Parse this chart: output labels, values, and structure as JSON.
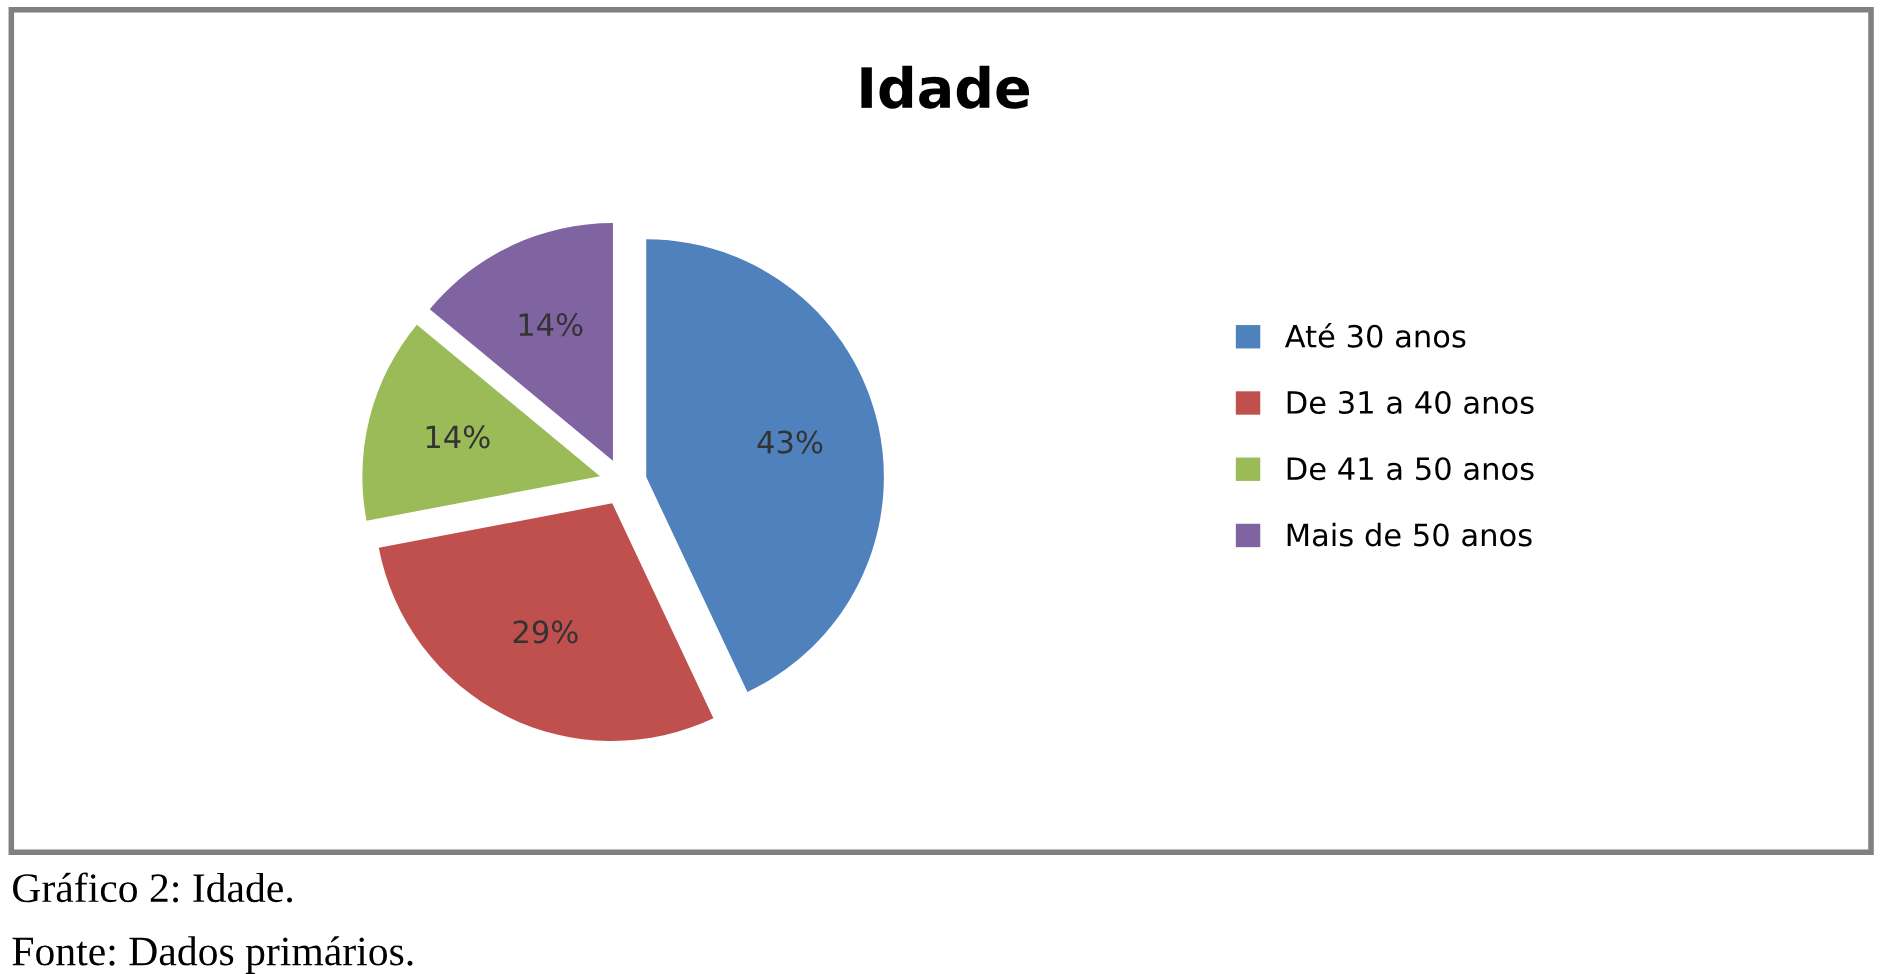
{
  "chart_data": {
    "type": "pie",
    "title": "Idade",
    "categories": [
      "Até 30 anos",
      "De 31 a 40 anos",
      "De 41 a 50 anos",
      "Mais de 50 anos"
    ],
    "values": [
      43,
      29,
      14,
      14
    ],
    "colors": [
      "#4f81bd",
      "#c0504d",
      "#9bbb59",
      "#8064a2"
    ],
    "value_labels": [
      "43%",
      "29%",
      "14%",
      "14%"
    ],
    "legend": "right",
    "annotations": [
      "Gráfico 2: Idade.",
      "Fonte: Dados primários."
    ]
  }
}
